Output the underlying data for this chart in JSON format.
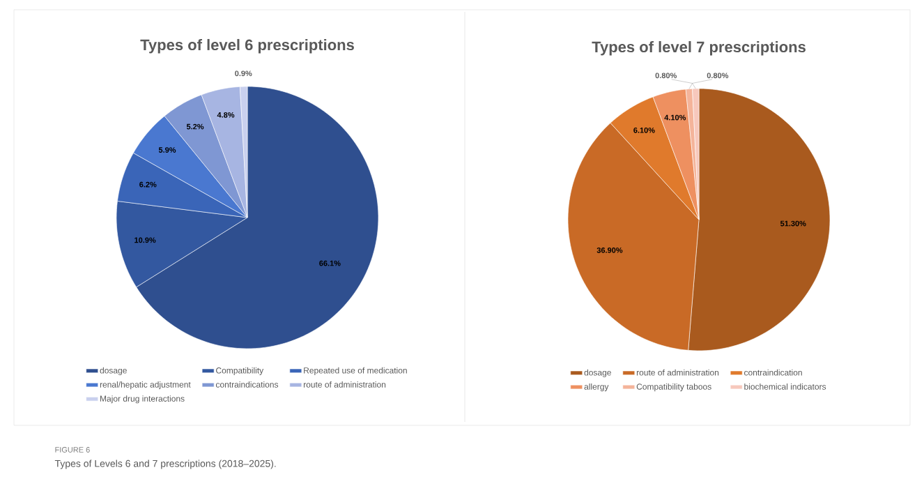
{
  "chart_data": [
    {
      "type": "pie",
      "title": "Types of level 6 prescriptions",
      "categories": [
        "dosage",
        "Compatibility",
        "Repeated use of medication",
        "renal/hepatic adjustment",
        "contraindications",
        "route of administration",
        "Major drug interactions"
      ],
      "values": [
        66.1,
        10.9,
        6.2,
        5.9,
        5.2,
        4.8,
        0.9
      ],
      "value_labels": [
        "66.1%",
        "10.9%",
        "6.2%",
        "5.9%",
        "5.2%",
        "4.8%",
        "0.9%"
      ],
      "colors": [
        "#2f4f8f",
        "#3358a0",
        "#3a65b8",
        "#4a78d0",
        "#7f97d3",
        "#a7b5e2",
        "#c9d0ee"
      ],
      "legend": "bottom"
    },
    {
      "type": "pie",
      "title": "Types of level 7 prescriptions",
      "categories": [
        "dosage",
        "route of administration",
        "contraindication",
        "allergy",
        "Compatibility taboos",
        "biochemical indicators"
      ],
      "values": [
        51.3,
        36.9,
        6.1,
        4.1,
        0.8,
        0.8
      ],
      "value_labels": [
        "51.30%",
        "36.90%",
        "6.10%",
        "4.10%",
        "0.80%",
        "0.80%"
      ],
      "colors": [
        "#a95a1e",
        "#c96a26",
        "#e07a2c",
        "#ee9060",
        "#f4b49a",
        "#f7c8bc"
      ],
      "legend": "bottom",
      "annotations": [
        "FIGURE 6",
        "Types of Levels 6 and 7 prescriptions (2018–2025)."
      ]
    }
  ]
}
